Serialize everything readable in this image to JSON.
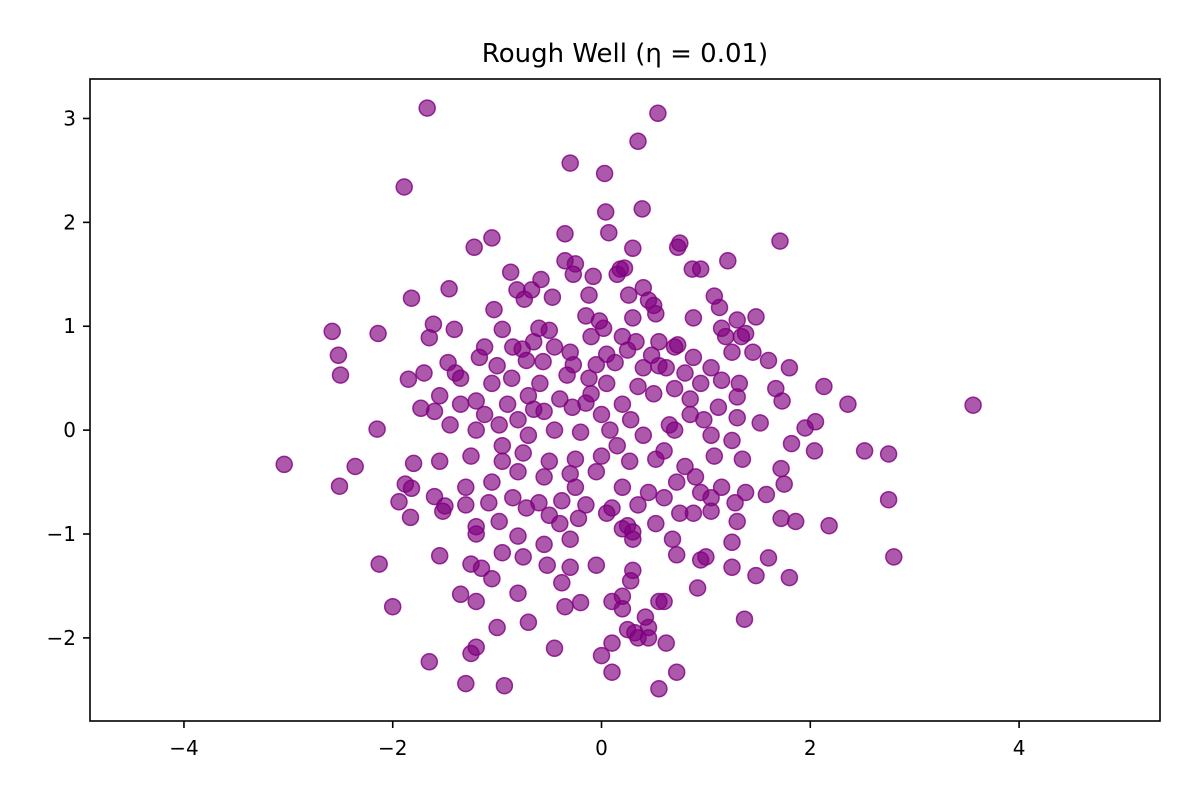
{
  "chart_data": {
    "type": "scatter",
    "title": "Rough Well (η = 0.01)",
    "xlabel": "",
    "ylabel": "",
    "xlim": [
      -4.9,
      5.35
    ],
    "ylim": [
      -2.8,
      3.38
    ],
    "xticks": [
      -4,
      -2,
      0,
      2,
      4
    ],
    "yticks": [
      -2,
      -1,
      0,
      1,
      2,
      3
    ],
    "xtick_labels": [
      "−4",
      "−2",
      "0",
      "2",
      "4"
    ],
    "ytick_labels": [
      "−2",
      "−1",
      "0",
      "1",
      "2",
      "3"
    ],
    "grid": false,
    "legend": "none",
    "marker_color": "#800080",
    "marker_alpha": 0.65,
    "points": [
      [
        -1.67,
        3.1
      ],
      [
        0.54,
        3.05
      ],
      [
        0.35,
        2.78
      ],
      [
        -0.3,
        2.57
      ],
      [
        -1.89,
        2.34
      ],
      [
        0.03,
        2.47
      ],
      [
        0.39,
        2.13
      ],
      [
        0.04,
        2.1
      ],
      [
        -1.05,
        1.85
      ],
      [
        -1.22,
        1.76
      ],
      [
        -0.35,
        1.89
      ],
      [
        0.07,
        1.9
      ],
      [
        0.3,
        1.75
      ],
      [
        0.75,
        1.8
      ],
      [
        0.73,
        1.76
      ],
      [
        1.71,
        1.82
      ],
      [
        1.21,
        1.63
      ],
      [
        -0.35,
        1.63
      ],
      [
        -0.25,
        1.6
      ],
      [
        0.18,
        1.55
      ],
      [
        0.22,
        1.56
      ],
      [
        0.87,
        1.55
      ],
      [
        0.95,
        1.55
      ],
      [
        -0.87,
        1.52
      ],
      [
        -0.27,
        1.5
      ],
      [
        -0.08,
        1.48
      ],
      [
        0.15,
        1.5
      ],
      [
        0.4,
        1.37
      ],
      [
        -0.58,
        1.45
      ],
      [
        -0.67,
        1.35
      ],
      [
        -1.46,
        1.36
      ],
      [
        -0.12,
        1.3
      ],
      [
        0.26,
        1.3
      ],
      [
        0.45,
        1.25
      ],
      [
        0.5,
        1.2
      ],
      [
        1.08,
        1.29
      ],
      [
        -1.82,
        1.27
      ],
      [
        -0.81,
        1.35
      ],
      [
        -0.74,
        1.26
      ],
      [
        -0.47,
        1.28
      ],
      [
        -1.03,
        1.16
      ],
      [
        0.52,
        1.12
      ],
      [
        0.3,
        1.08
      ],
      [
        0.88,
        1.08
      ],
      [
        1.13,
        1.18
      ],
      [
        1.3,
        1.06
      ],
      [
        1.48,
        1.09
      ],
      [
        -1.61,
        1.02
      ],
      [
        -1.41,
        0.97
      ],
      [
        -0.95,
        0.97
      ],
      [
        -0.6,
        0.98
      ],
      [
        -0.5,
        0.96
      ],
      [
        -0.15,
        1.1
      ],
      [
        -0.02,
        1.05
      ],
      [
        0.02,
        0.98
      ],
      [
        -0.1,
        0.9
      ],
      [
        0.2,
        0.9
      ],
      [
        0.33,
        0.85
      ],
      [
        0.73,
        0.82
      ],
      [
        1.15,
        0.98
      ],
      [
        1.19,
        0.9
      ],
      [
        1.34,
        0.9
      ],
      [
        1.38,
        0.93
      ],
      [
        -2.58,
        0.95
      ],
      [
        -2.14,
        0.93
      ],
      [
        -1.65,
        0.89
      ],
      [
        -0.85,
        0.8
      ],
      [
        -0.76,
        0.78
      ],
      [
        -0.65,
        0.85
      ],
      [
        -0.45,
        0.8
      ],
      [
        -0.3,
        0.75
      ],
      [
        0.05,
        0.73
      ],
      [
        0.25,
        0.77
      ],
      [
        0.48,
        0.72
      ],
      [
        0.7,
        0.8
      ],
      [
        0.88,
        0.7
      ],
      [
        1.25,
        0.75
      ],
      [
        1.45,
        0.75
      ],
      [
        1.6,
        0.67
      ],
      [
        -2.52,
        0.72
      ],
      [
        -1.85,
        0.49
      ],
      [
        -1.47,
        0.65
      ],
      [
        -1.4,
        0.55
      ],
      [
        -1.12,
        0.8
      ],
      [
        -1.17,
        0.7
      ],
      [
        -1.0,
        0.62
      ],
      [
        -0.72,
        0.67
      ],
      [
        -0.56,
        0.66
      ],
      [
        -0.27,
        0.63
      ],
      [
        -0.05,
        0.63
      ],
      [
        0.13,
        0.65
      ],
      [
        0.4,
        0.6
      ],
      [
        0.55,
        0.62
      ],
      [
        0.62,
        0.6
      ],
      [
        0.8,
        0.55
      ],
      [
        1.05,
        0.6
      ],
      [
        1.15,
        0.48
      ],
      [
        1.8,
        0.6
      ],
      [
        -2.5,
        0.53
      ],
      [
        -1.7,
        0.55
      ],
      [
        -1.35,
        0.5
      ],
      [
        -1.05,
        0.45
      ],
      [
        -0.86,
        0.5
      ],
      [
        -0.59,
        0.45
      ],
      [
        -0.33,
        0.53
      ],
      [
        -0.12,
        0.5
      ],
      [
        0.05,
        0.45
      ],
      [
        0.35,
        0.42
      ],
      [
        0.7,
        0.4
      ],
      [
        0.95,
        0.45
      ],
      [
        1.32,
        0.45
      ],
      [
        1.67,
        0.4
      ],
      [
        2.13,
        0.42
      ],
      [
        -1.55,
        0.33
      ],
      [
        -1.2,
        0.28
      ],
      [
        -0.9,
        0.25
      ],
      [
        -0.7,
        0.33
      ],
      [
        -0.4,
        0.3
      ],
      [
        -0.15,
        0.26
      ],
      [
        0.2,
        0.25
      ],
      [
        0.5,
        0.35
      ],
      [
        0.85,
        0.3
      ],
      [
        1.12,
        0.22
      ],
      [
        1.3,
        0.32
      ],
      [
        1.73,
        0.28
      ],
      [
        2.36,
        0.25
      ],
      [
        3.56,
        0.24
      ],
      [
        -1.73,
        0.21
      ],
      [
        -1.35,
        0.25
      ],
      [
        -1.12,
        0.15
      ],
      [
        -0.8,
        0.1
      ],
      [
        -0.55,
        0.18
      ],
      [
        -0.28,
        0.22
      ],
      [
        0.0,
        0.15
      ],
      [
        0.28,
        0.1
      ],
      [
        0.65,
        0.05
      ],
      [
        0.98,
        0.1
      ],
      [
        1.3,
        0.12
      ],
      [
        1.52,
        0.07
      ],
      [
        2.05,
        0.08
      ],
      [
        -2.15,
        0.01
      ],
      [
        -1.6,
        0.18
      ],
      [
        -1.45,
        0.05
      ],
      [
        -1.2,
        0.0
      ],
      [
        -0.98,
        0.05
      ],
      [
        -0.7,
        -0.05
      ],
      [
        -0.45,
        0.0
      ],
      [
        -0.2,
        -0.02
      ],
      [
        0.08,
        0.0
      ],
      [
        0.4,
        -0.05
      ],
      [
        0.7,
        0.0
      ],
      [
        1.05,
        -0.05
      ],
      [
        1.25,
        -0.1
      ],
      [
        1.82,
        -0.13
      ],
      [
        1.95,
        0.02
      ],
      [
        2.04,
        -0.2
      ],
      [
        -3.04,
        -0.33
      ],
      [
        -2.36,
        -0.35
      ],
      [
        -1.8,
        -0.32
      ],
      [
        -1.55,
        -0.3
      ],
      [
        -1.25,
        -0.25
      ],
      [
        -0.95,
        -0.3
      ],
      [
        -0.75,
        -0.22
      ],
      [
        -0.5,
        -0.3
      ],
      [
        -0.25,
        -0.28
      ],
      [
        0.0,
        -0.25
      ],
      [
        0.27,
        -0.3
      ],
      [
        0.52,
        -0.28
      ],
      [
        0.8,
        -0.35
      ],
      [
        1.08,
        -0.25
      ],
      [
        1.35,
        -0.28
      ],
      [
        1.72,
        -0.37
      ],
      [
        2.52,
        -0.2
      ],
      [
        2.75,
        -0.23
      ],
      [
        -2.51,
        -0.54
      ],
      [
        -1.88,
        -0.52
      ],
      [
        -1.6,
        -0.64
      ],
      [
        -1.3,
        -0.55
      ],
      [
        -1.05,
        -0.5
      ],
      [
        -0.8,
        -0.4
      ],
      [
        -0.55,
        -0.45
      ],
      [
        -0.3,
        -0.42
      ],
      [
        -0.05,
        -0.4
      ],
      [
        0.2,
        -0.55
      ],
      [
        0.45,
        -0.6
      ],
      [
        0.72,
        -0.5
      ],
      [
        0.9,
        -0.45
      ],
      [
        1.15,
        -0.55
      ],
      [
        1.38,
        -0.6
      ],
      [
        1.75,
        -0.52
      ],
      [
        -1.94,
        -0.69
      ],
      [
        -1.82,
        -0.56
      ],
      [
        -1.52,
        -0.78
      ],
      [
        -1.3,
        -0.72
      ],
      [
        -1.08,
        -0.7
      ],
      [
        -0.85,
        -0.65
      ],
      [
        -0.6,
        -0.7
      ],
      [
        -0.38,
        -0.68
      ],
      [
        -0.15,
        -0.72
      ],
      [
        0.1,
        -0.75
      ],
      [
        0.35,
        -0.72
      ],
      [
        0.6,
        -0.65
      ],
      [
        0.88,
        -0.8
      ],
      [
        1.05,
        -0.78
      ],
      [
        1.28,
        -0.7
      ],
      [
        1.58,
        -0.62
      ],
      [
        2.75,
        -0.67
      ],
      [
        -1.83,
        -0.84
      ],
      [
        -1.5,
        -0.73
      ],
      [
        -1.2,
        -0.93
      ],
      [
        -0.98,
        -0.88
      ],
      [
        -0.72,
        -0.75
      ],
      [
        -0.5,
        -0.82
      ],
      [
        -0.22,
        -0.85
      ],
      [
        0.05,
        -0.8
      ],
      [
        0.25,
        -0.92
      ],
      [
        0.52,
        -0.9
      ],
      [
        0.75,
        -0.8
      ],
      [
        1.05,
        -0.65
      ],
      [
        1.3,
        -0.88
      ],
      [
        1.72,
        -0.85
      ],
      [
        1.86,
        -0.88
      ],
      [
        2.18,
        -0.92
      ],
      [
        -1.55,
        -1.21
      ],
      [
        -1.2,
        -1.0
      ],
      [
        -0.8,
        -1.02
      ],
      [
        -0.55,
        -1.1
      ],
      [
        -0.3,
        -1.05
      ],
      [
        0.2,
        -0.95
      ],
      [
        0.3,
        -0.98
      ],
      [
        0.68,
        -1.05
      ],
      [
        1.0,
        -1.22
      ],
      [
        1.25,
        -1.08
      ],
      [
        1.6,
        -1.23
      ],
      [
        -2.13,
        -1.29
      ],
      [
        -1.25,
        -1.29
      ],
      [
        -1.15,
        -1.33
      ],
      [
        -0.95,
        -1.18
      ],
      [
        -0.75,
        -1.22
      ],
      [
        -0.52,
        -1.3
      ],
      [
        -0.3,
        -1.32
      ],
      [
        -0.05,
        -1.3
      ],
      [
        0.3,
        -1.35
      ],
      [
        0.72,
        -1.2
      ],
      [
        0.95,
        -1.25
      ],
      [
        1.25,
        -1.32
      ],
      [
        1.48,
        -1.4
      ],
      [
        1.8,
        -1.42
      ],
      [
        2.8,
        -1.22
      ],
      [
        -1.05,
        -1.43
      ],
      [
        -0.8,
        -1.57
      ],
      [
        -0.38,
        -1.47
      ],
      [
        0.2,
        -1.6
      ],
      [
        0.28,
        -1.45
      ],
      [
        0.6,
        -1.65
      ],
      [
        0.92,
        -1.52
      ],
      [
        -2.0,
        -1.7
      ],
      [
        -1.35,
        -1.58
      ],
      [
        -1.2,
        -1.65
      ],
      [
        -0.35,
        -1.7
      ],
      [
        -0.2,
        -1.66
      ],
      [
        0.1,
        -1.65
      ],
      [
        0.2,
        -1.72
      ],
      [
        0.55,
        -1.65
      ],
      [
        1.37,
        -1.82
      ],
      [
        -1.0,
        -1.9
      ],
      [
        -0.7,
        -1.85
      ],
      [
        0.25,
        -1.92
      ],
      [
        0.32,
        -1.95
      ],
      [
        0.42,
        -1.8
      ],
      [
        0.35,
        -2.0
      ],
      [
        0.45,
        -1.9
      ],
      [
        0.1,
        -2.05
      ],
      [
        0.45,
        -2.0
      ],
      [
        0.62,
        -2.05
      ],
      [
        -0.45,
        -2.1
      ],
      [
        0.0,
        -2.17
      ],
      [
        -1.65,
        -2.23
      ],
      [
        -1.25,
        -2.15
      ],
      [
        -1.2,
        -2.09
      ],
      [
        0.1,
        -2.33
      ],
      [
        0.72,
        -2.33
      ],
      [
        -1.3,
        -2.44
      ],
      [
        -0.93,
        -2.46
      ],
      [
        0.55,
        -2.49
      ],
      [
        0.3,
        -1.05
      ],
      [
        -0.4,
        -0.9
      ],
      [
        0.85,
        0.15
      ],
      [
        -0.1,
        0.35
      ],
      [
        0.15,
        -0.15
      ],
      [
        -0.65,
        0.2
      ],
      [
        0.55,
        0.85
      ],
      [
        -0.95,
        -0.15
      ],
      [
        0.6,
        -0.2
      ],
      [
        -0.25,
        -0.55
      ],
      [
        0.95,
        -0.6
      ]
    ]
  }
}
